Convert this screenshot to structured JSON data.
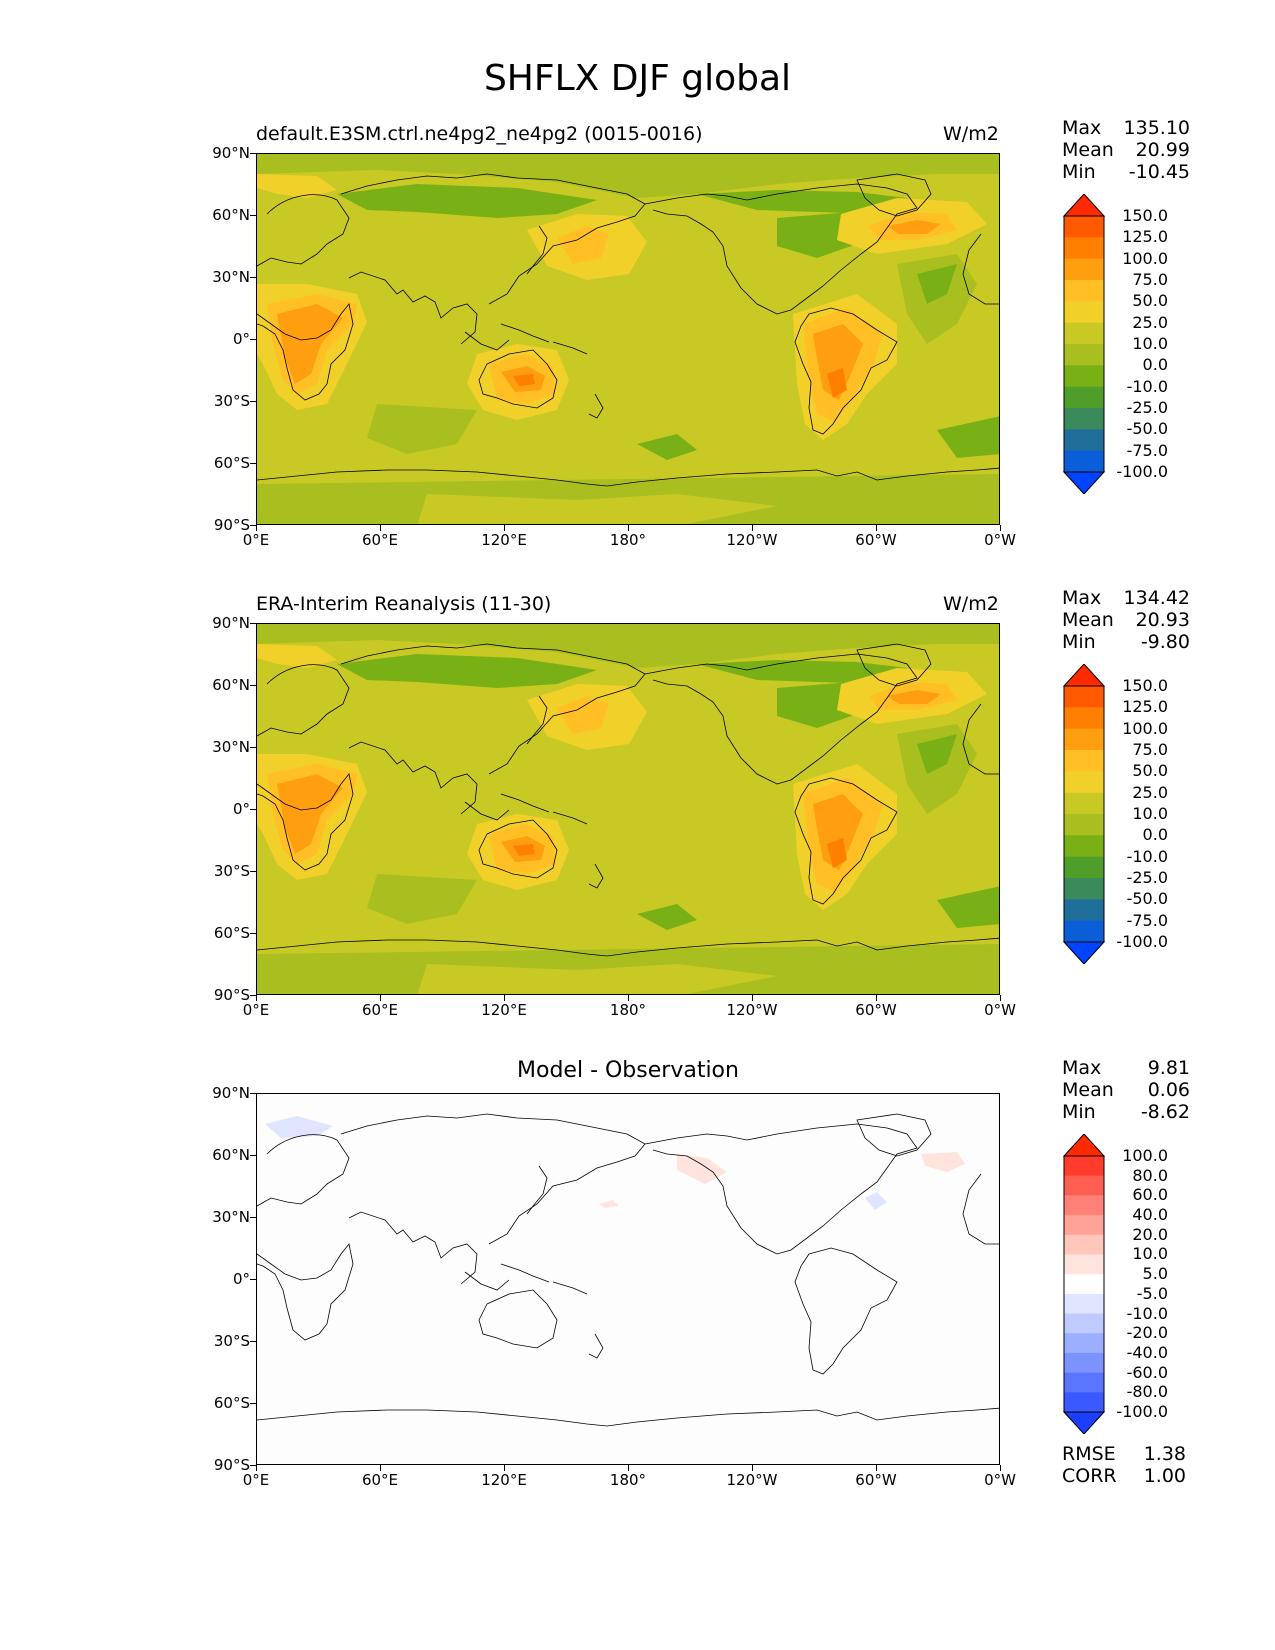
{
  "title": "SHFLX DJF global",
  "panels": [
    {
      "subtitle": "default.E3SM.ctrl.ne4pg2_ne4pg2 (0015-0016)",
      "units": "W/m2",
      "stats": {
        "max_label": "Max",
        "max": "135.10",
        "mean_label": "Mean",
        "mean": "20.99",
        "min_label": "Min",
        "min": "-10.45"
      }
    },
    {
      "subtitle": "ERA-Interim Reanalysis (11-30)",
      "units": "W/m2",
      "stats": {
        "max_label": "Max",
        "max": "134.42",
        "mean_label": "Mean",
        "mean": "20.93",
        "min_label": "Min",
        "min": "-9.80"
      }
    },
    {
      "subtitle": "Model - Observation",
      "units": "",
      "stats": {
        "max_label": "Max",
        "max": "9.81",
        "mean_label": "Mean",
        "mean": "0.06",
        "min_label": "Min",
        "min": "-8.62"
      },
      "rmse_label": "RMSE",
      "rmse": "1.38",
      "corr_label": "CORR",
      "corr": "1.00"
    }
  ],
  "lat_ticks": [
    "90°N",
    "60°N",
    "30°N",
    "0°",
    "30°S",
    "60°S",
    "90°S"
  ],
  "lon_ticks": [
    "0°E",
    "60°E",
    "120°E",
    "180°",
    "120°W",
    "60°W",
    "0°W"
  ],
  "colorbar_main": {
    "levels": [
      "150.0",
      "125.0",
      "100.0",
      "75.0",
      "50.0",
      "25.0",
      "10.0",
      "0.0",
      "-10.0",
      "-25.0",
      "-50.0",
      "-75.0",
      "-100.0"
    ],
    "colors": [
      "#ff2a00",
      "#ff5a00",
      "#ff7f00",
      "#ff9f10",
      "#ffbf25",
      "#f1d02a",
      "#c8c925",
      "#a9bf20",
      "#78b016",
      "#4f9e2a",
      "#3a8a5c",
      "#1f6f9a",
      "#0a5ed8",
      "#0044ff"
    ]
  },
  "colorbar_diff": {
    "levels": [
      "100.0",
      "80.0",
      "60.0",
      "40.0",
      "20.0",
      "10.0",
      "5.0",
      "-5.0",
      "-10.0",
      "-20.0",
      "-40.0",
      "-60.0",
      "-80.0",
      "-100.0"
    ],
    "colors": [
      "#ff2a00",
      "#ff3c2c",
      "#ff5e52",
      "#ff8076",
      "#ffa398",
      "#ffc7bc",
      "#ffe4de",
      "#ffffff",
      "#dfe5ff",
      "#bfcaff",
      "#9caeff",
      "#7b92ff",
      "#5a76ff",
      "#3a5aff",
      "#1c3eff"
    ]
  },
  "chart_data": [
    {
      "type": "heatmap",
      "title": "default.E3SM.ctrl.ne4pg2_ne4pg2 (0015-0016)",
      "units": "W/m2",
      "max": 135.1,
      "mean": 20.99,
      "min": -10.45
    },
    {
      "type": "heatmap",
      "title": "ERA-Interim Reanalysis (11-30)",
      "units": "W/m2",
      "max": 134.42,
      "mean": 20.93,
      "min": -9.8
    },
    {
      "type": "heatmap",
      "title": "Model - Observation",
      "max": 9.81,
      "mean": 0.06,
      "min": -8.62,
      "rmse": 1.38,
      "corr": 1.0
    }
  ]
}
